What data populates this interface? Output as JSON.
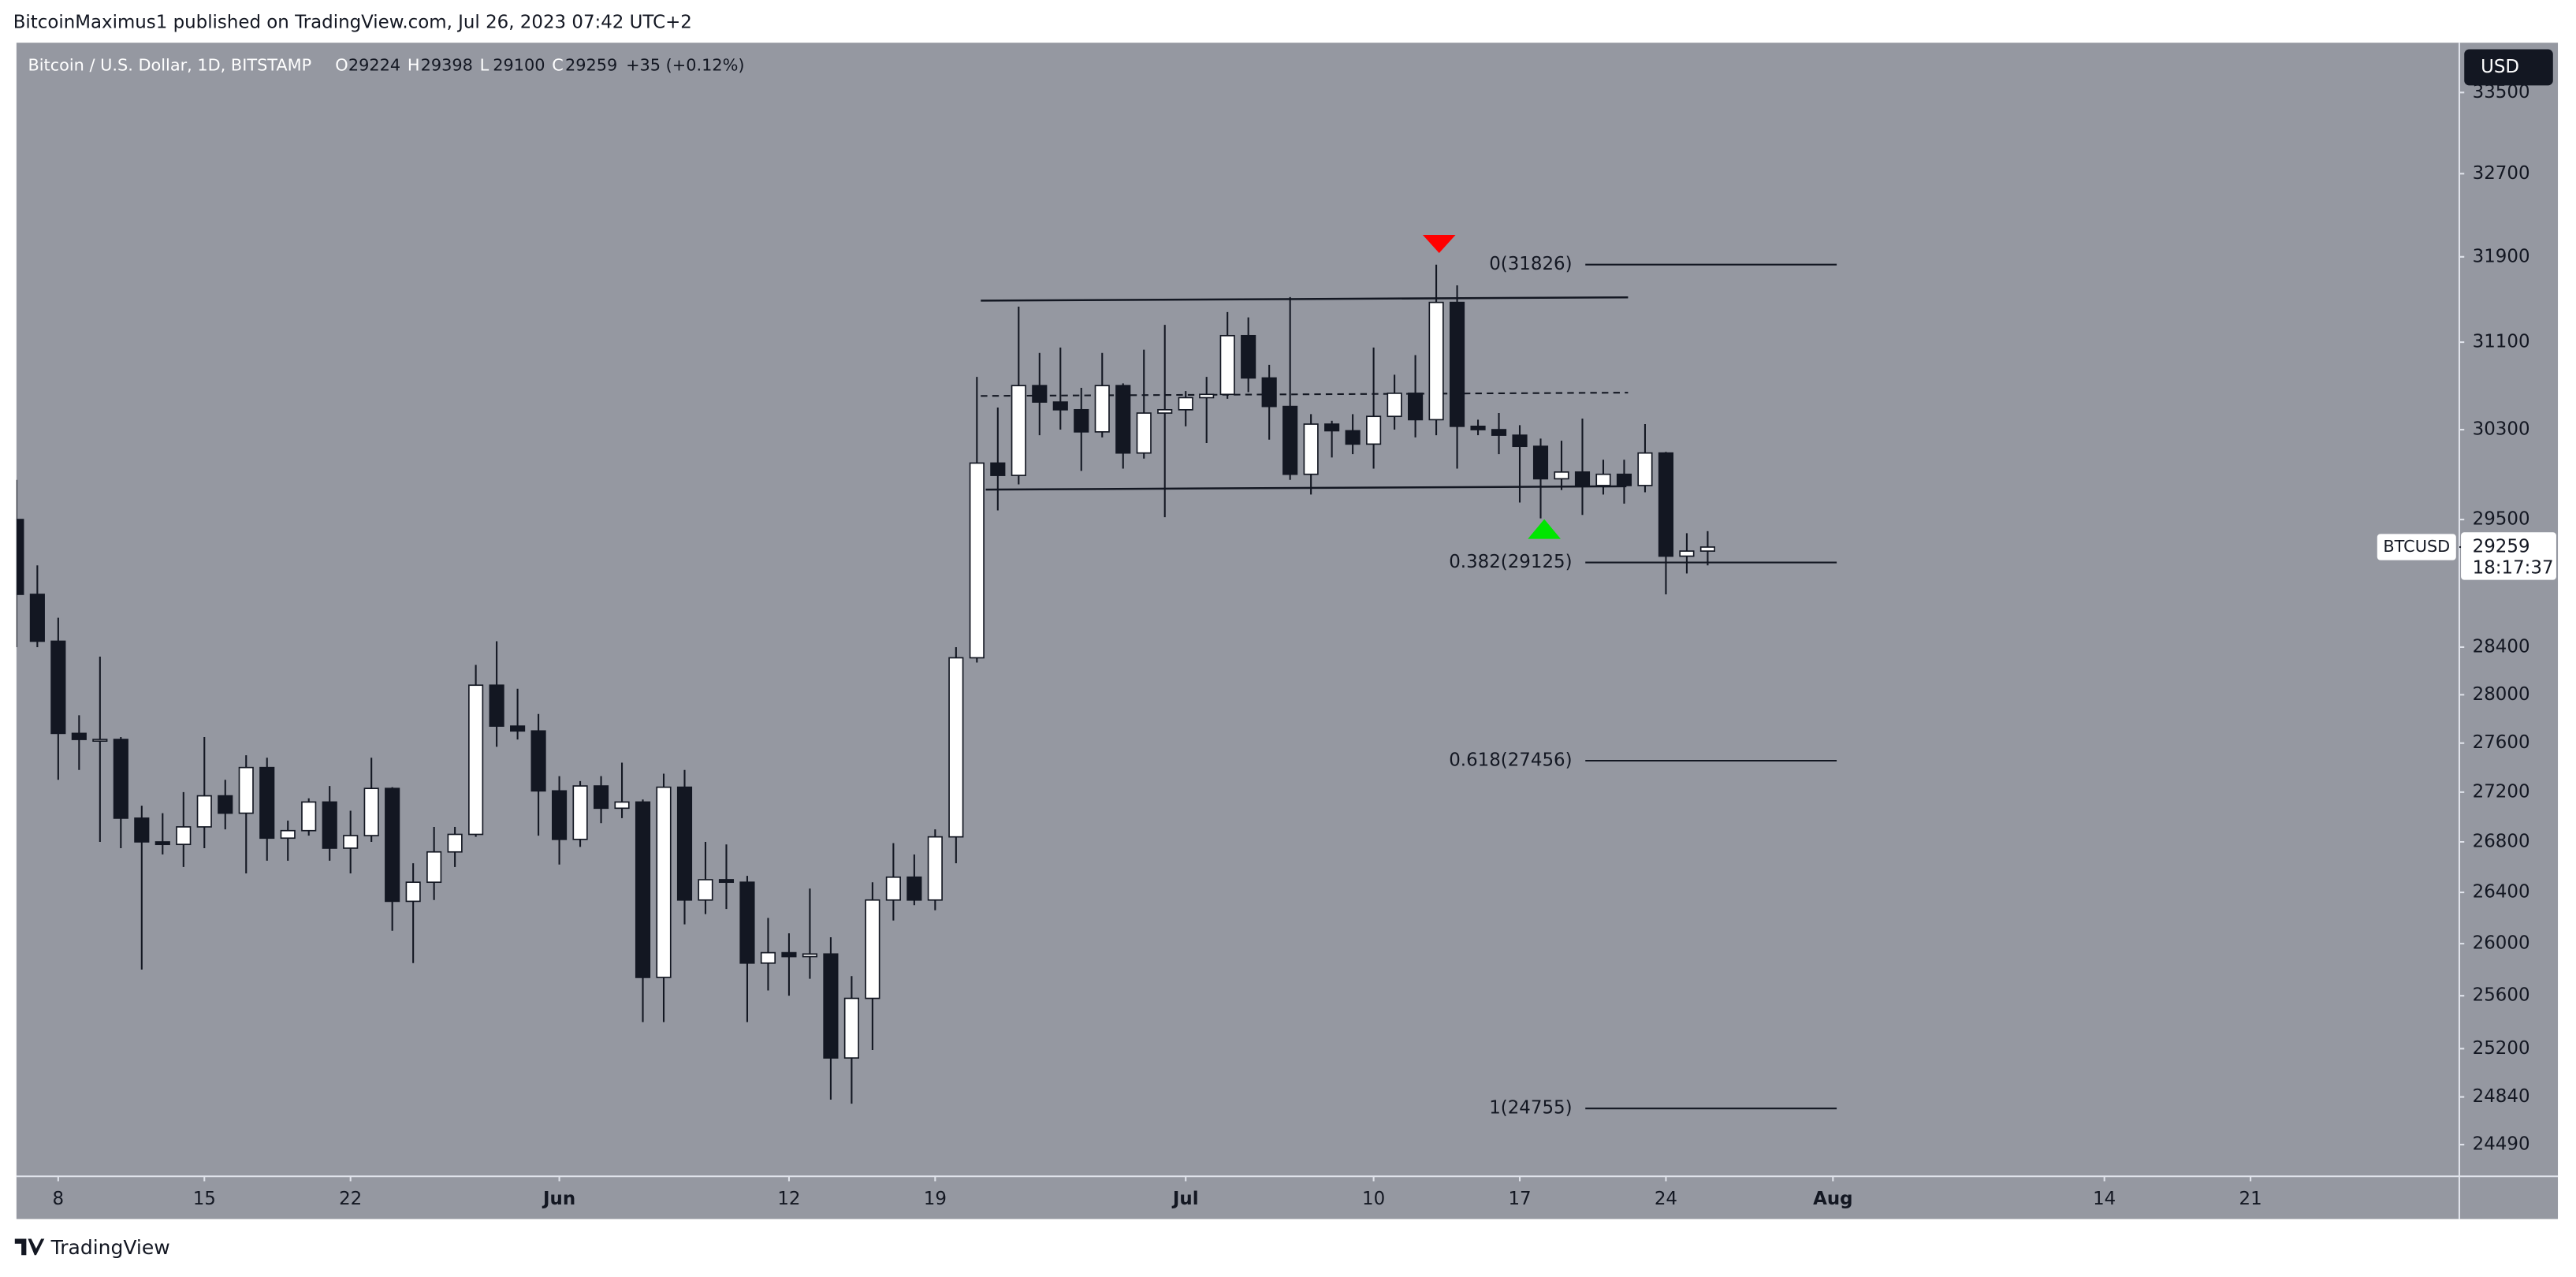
{
  "header": {
    "byline": "BitcoinMaximus1 published on TradingView.com, Jul 26, 2023 07:42 UTC+2"
  },
  "chart_data": {
    "type": "candlestick",
    "title": "Bitcoin / U.S. Dollar, 1D, BITSTAMP",
    "ohlc_legend": [
      {
        "label": "O",
        "value": 29224
      },
      {
        "label": "H",
        "value": 29398
      },
      {
        "label": "L",
        "value": 29100
      },
      {
        "label": "C",
        "value": 29259
      }
    ],
    "change": "+35 (+0.12%)",
    "currency": "USD",
    "x": [
      "05-06",
      "05-07",
      "05-08",
      "05-09",
      "05-10",
      "05-11",
      "05-12",
      "05-13",
      "05-14",
      "05-15",
      "05-16",
      "05-17",
      "05-18",
      "05-19",
      "05-20",
      "05-21",
      "05-22",
      "05-23",
      "05-24",
      "05-25",
      "05-26",
      "05-27",
      "05-28",
      "05-29",
      "05-30",
      "05-31",
      "06-01",
      "06-02",
      "06-03",
      "06-04",
      "06-05",
      "06-06",
      "06-07",
      "06-08",
      "06-09",
      "06-10",
      "06-11",
      "06-12",
      "06-13",
      "06-14",
      "06-15",
      "06-16",
      "06-17",
      "06-18",
      "06-19",
      "06-20",
      "06-21",
      "06-22",
      "06-23",
      "06-24",
      "06-25",
      "06-26",
      "06-27",
      "06-28",
      "06-29",
      "06-30",
      "07-01",
      "07-02",
      "07-03",
      "07-04",
      "07-05",
      "07-06",
      "07-07",
      "07-08",
      "07-09",
      "07-10",
      "07-11",
      "07-12",
      "07-13",
      "07-14",
      "07-15",
      "07-16",
      "07-17",
      "07-18",
      "07-19",
      "07-20",
      "07-21",
      "07-22",
      "07-23",
      "07-24",
      "07-25",
      "07-26"
    ],
    "series": [
      {
        "name": "BTCUSD",
        "up_color": "#ffffff",
        "down_color": "#131722",
        "open": [
          29500,
          28850,
          28450,
          27680,
          27630,
          27630,
          26990,
          26800,
          26780,
          26920,
          27170,
          27030,
          27400,
          26830,
          26890,
          27120,
          26750,
          26850,
          27230,
          26330,
          26480,
          26720,
          26860,
          28080,
          27740,
          27700,
          27210,
          26820,
          27250,
          27070,
          27120,
          25740,
          27240,
          26340,
          26500,
          26480,
          25850,
          25930,
          25900,
          25920,
          25130,
          25580,
          26340,
          26520,
          26340,
          26840,
          28310,
          30000,
          29890,
          30700,
          30550,
          30480,
          30280,
          30700,
          30090,
          30450,
          30480,
          30590,
          30620,
          31160,
          30770,
          30510,
          29900,
          30350,
          30290,
          30170,
          30420,
          30630,
          30390,
          31470,
          30330,
          30300,
          30250,
          30150,
          29860,
          29920,
          29800,
          29900,
          29800,
          30090,
          29180,
          29224
        ],
        "high": [
          29850,
          29100,
          28650,
          27830,
          28320,
          27650,
          27090,
          27030,
          27200,
          27650,
          27300,
          27500,
          27480,
          26970,
          27150,
          27250,
          27050,
          27480,
          27240,
          26630,
          26920,
          26920,
          28250,
          28450,
          28050,
          27840,
          27330,
          27290,
          27330,
          27440,
          27140,
          27350,
          27380,
          26800,
          26780,
          26530,
          26200,
          26080,
          26430,
          26050,
          25750,
          26480,
          26790,
          26700,
          26900,
          28400,
          30780,
          30500,
          31430,
          31000,
          31050,
          30680,
          31000,
          30720,
          31030,
          31260,
          30650,
          30780,
          31380,
          31330,
          30890,
          31520,
          30440,
          30380,
          30440,
          31050,
          30800,
          30980,
          31826,
          31630,
          30390,
          30450,
          30340,
          30220,
          30200,
          30400,
          30030,
          30030,
          30350,
          30100,
          29380,
          29398
        ],
        "low": [
          28400,
          28400,
          27300,
          27380,
          26800,
          26750,
          25800,
          26700,
          26600,
          26750,
          26900,
          26550,
          26650,
          26650,
          26850,
          26650,
          26550,
          26800,
          26100,
          25850,
          26340,
          26600,
          26840,
          27570,
          27630,
          26850,
          26620,
          26760,
          26950,
          26990,
          25400,
          25400,
          26150,
          26230,
          26270,
          25400,
          25640,
          25600,
          25730,
          24820,
          24790,
          25190,
          26180,
          26300,
          26260,
          26630,
          28270,
          29580,
          29810,
          30250,
          30300,
          29930,
          30230,
          29950,
          30040,
          29520,
          30330,
          30180,
          30580,
          30640,
          30210,
          29850,
          29720,
          30050,
          30080,
          29950,
          30300,
          30230,
          30250,
          29950,
          30250,
          30080,
          29650,
          29510,
          29760,
          29540,
          29720,
          29640,
          29740,
          28850,
          29030,
          29100
        ],
        "close": [
          28850,
          28450,
          27680,
          27630,
          27630,
          26990,
          26800,
          26780,
          26920,
          27170,
          27030,
          27400,
          26830,
          26890,
          27120,
          26750,
          26850,
          27230,
          26330,
          26480,
          26720,
          26860,
          28080,
          27740,
          27700,
          27210,
          26820,
          27250,
          27070,
          27120,
          25740,
          27240,
          26340,
          26500,
          26480,
          25850,
          25930,
          25900,
          25920,
          25130,
          25580,
          26340,
          26520,
          26340,
          26840,
          28310,
          30000,
          29890,
          30700,
          30550,
          30480,
          30280,
          30700,
          30090,
          30450,
          30480,
          30590,
          30620,
          31160,
          30770,
          30510,
          29900,
          30350,
          30290,
          30170,
          30420,
          30630,
          30390,
          31470,
          30330,
          30300,
          30250,
          30150,
          29860,
          29920,
          29800,
          29900,
          29800,
          30090,
          29180,
          29224,
          29259
        ]
      }
    ],
    "last_price": 29259,
    "countdown": "18:17:37",
    "log_scale": true,
    "grid": false,
    "ylim": [
      24260,
      34000
    ],
    "yticks": [
      33500,
      32700,
      31900,
      31100,
      30300,
      29500,
      28400,
      28000,
      27600,
      27200,
      26800,
      26400,
      26000,
      25600,
      25200,
      24840,
      24490
    ],
    "xlim": [
      "05-06",
      "08-31"
    ],
    "xticks": [
      {
        "value": "05-08",
        "label": "8"
      },
      {
        "value": "05-15",
        "label": "15"
      },
      {
        "value": "05-22",
        "label": "22"
      },
      {
        "value": "06-01",
        "label": "Jun"
      },
      {
        "value": "06-12",
        "label": "12"
      },
      {
        "value": "06-19",
        "label": "19"
      },
      {
        "value": "07-01",
        "label": "Jul"
      },
      {
        "value": "07-10",
        "label": "10"
      },
      {
        "value": "07-17",
        "label": "17"
      },
      {
        "value": "07-24",
        "label": "24"
      },
      {
        "value": "08-01",
        "label": "Aug"
      },
      {
        "value": "08-14",
        "label": "14"
      },
      {
        "value": "08-21",
        "label": "21"
      }
    ],
    "fib_levels": [
      {
        "label": "0(31826)",
        "value": 31826
      },
      {
        "label": "0.382(29125)",
        "value": 29125
      },
      {
        "label": "0.618(27456)",
        "value": 27456
      },
      {
        "label": "1(24755)",
        "value": 24755
      }
    ]
  },
  "footer": {
    "brand": "TradingView"
  }
}
